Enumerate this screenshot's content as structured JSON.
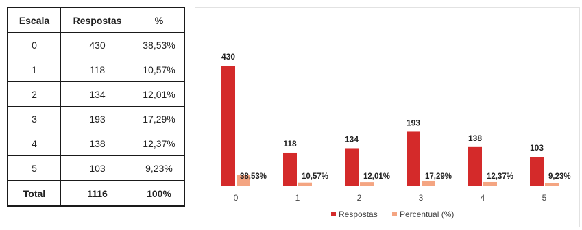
{
  "table": {
    "headers": [
      "Escala",
      "Respostas",
      "%"
    ],
    "rows": [
      [
        "0",
        "430",
        "38,53%"
      ],
      [
        "1",
        "118",
        "10,57%"
      ],
      [
        "2",
        "134",
        "12,01%"
      ],
      [
        "3",
        "193",
        "17,29%"
      ],
      [
        "4",
        "138",
        "12,37%"
      ],
      [
        "5",
        "103",
        "9,23%"
      ]
    ],
    "total": [
      "Total",
      "1116",
      "100%"
    ]
  },
  "chart_data": {
    "type": "bar",
    "title": "",
    "xlabel": "",
    "ylabel": "",
    "categories": [
      "0",
      "1",
      "2",
      "3",
      "4",
      "5"
    ],
    "series": [
      {
        "name": "Respostas",
        "values": [
          430,
          118,
          134,
          193,
          138,
          103
        ],
        "color": "#d42a2a",
        "labels": [
          "430",
          "118",
          "134",
          "193",
          "138",
          "103"
        ]
      },
      {
        "name": "Percentual (%)",
        "values": [
          38.53,
          10.57,
          12.01,
          17.29,
          12.37,
          9.23
        ],
        "color": "#f4a582",
        "labels": [
          "38,53%",
          "10,57%",
          "12,01%",
          "17,29%",
          "12,37%",
          "9,23%"
        ]
      }
    ],
    "ylim": [
      0,
      430
    ],
    "grid": false,
    "legend_position": "bottom"
  }
}
